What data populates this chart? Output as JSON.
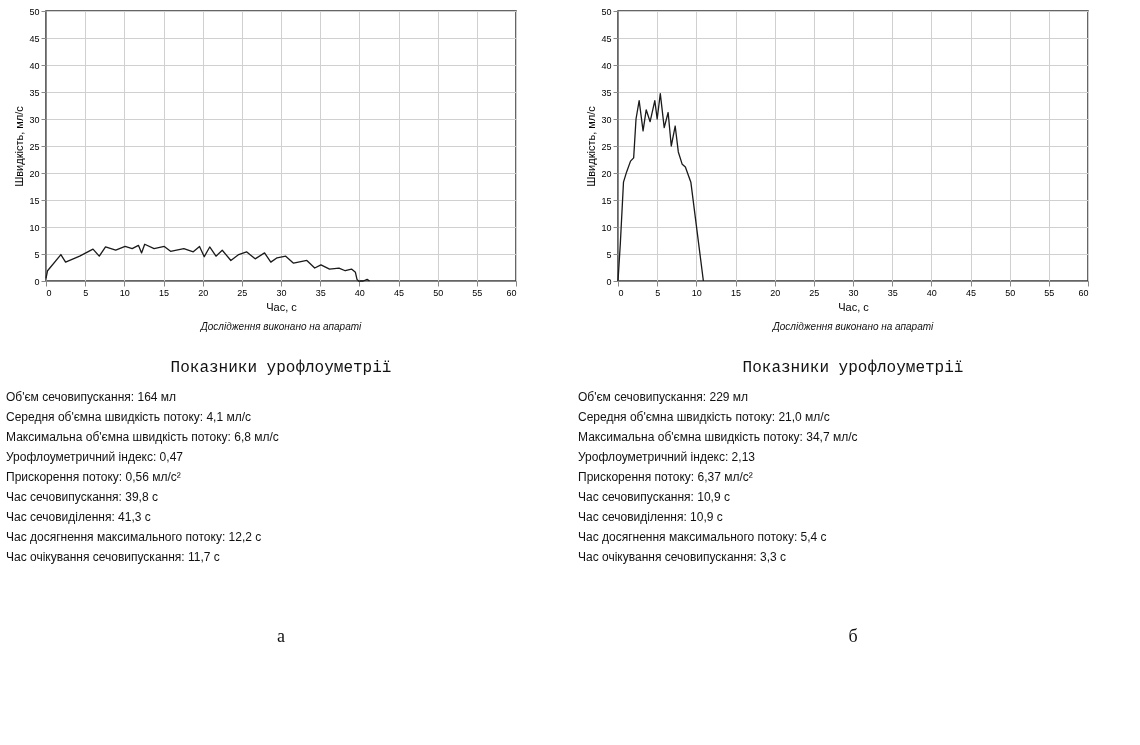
{
  "chart_data": [
    {
      "type": "line",
      "xlabel": "Час, с",
      "ylabel": "Швидкість, мл/с",
      "color": "#1a1a1a",
      "grid": true,
      "xlim": [
        0,
        60
      ],
      "xticks": [
        0,
        5,
        10,
        15,
        20,
        25,
        30,
        35,
        40,
        45,
        50,
        55,
        60
      ],
      "ylim": [
        0,
        50
      ],
      "yticks": [
        0,
        5,
        10,
        15,
        20,
        25,
        30,
        35,
        40,
        45,
        50
      ],
      "x": [
        0,
        0.2,
        1.9,
        2.5,
        4.3,
        6,
        6.8,
        7.6,
        8.9,
        10.1,
        11,
        11.8,
        12.2,
        12.6,
        13.8,
        15.1,
        15.9,
        17.6,
        18.8,
        19.6,
        20.2,
        20.9,
        21.7,
        22.5,
        23.6,
        24.6,
        25.6,
        26.7,
        27.9,
        28.7,
        29.5,
        30.6,
        31.6,
        33.3,
        34.3,
        35.1,
        36.2,
        37.4,
        38.2,
        39,
        39.5,
        39.7,
        39.9,
        40.5,
        41,
        41.3
      ],
      "values": [
        0.5,
        1.9,
        4.9,
        3.5,
        4.6,
        5.9,
        4.6,
        6.3,
        5.7,
        6.4,
        6,
        6.6,
        5.2,
        6.8,
        6,
        6.4,
        5.5,
        6,
        5.4,
        6.4,
        4.5,
        6.3,
        4.6,
        5.7,
        3.8,
        4.9,
        5.4,
        4.1,
        5.2,
        3.5,
        4.3,
        4.6,
        3.3,
        3.8,
        2.4,
        3,
        2.2,
        2.4,
        1.9,
        2.2,
        1.6,
        0.3,
        0,
        0,
        0.3,
        0
      ],
      "annotations": [
        "Дослідження виконано на апараті",
        "Показники урофлоуметрії",
        "Об'єм сечовипускання: 164 мл",
        "Середня об'ємна швидкість потоку: 4,1 мл/с",
        "Максимальна об'ємна швидкість потоку: 6,8 мл/с",
        "Урофлоуметричний індекс: 0,47",
        "Прискорення потоку: 0,56 мл/с²",
        "Час сечовипускання: 39,8 с",
        "Час сечовиділення: 41,3 с",
        "Час досягнення максимального потоку: 12,2 с",
        "Час очікування сечовипускання: 11,7 с",
        "а"
      ]
    },
    {
      "type": "line",
      "xlabel": "Час, с",
      "ylabel": "Швидкість, мл/с",
      "color": "#1a1a1a",
      "grid": true,
      "xlim": [
        0,
        60
      ],
      "xticks": [
        0,
        5,
        10,
        15,
        20,
        25,
        30,
        35,
        40,
        45,
        50,
        55,
        60
      ],
      "ylim": [
        0,
        50
      ],
      "yticks": [
        0,
        5,
        10,
        15,
        20,
        25,
        30,
        35,
        40,
        45,
        50
      ],
      "x": [
        0,
        0.3,
        0.7,
        1.1,
        1.6,
        2,
        2.3,
        2.7,
        3.2,
        3.6,
        4.1,
        4.7,
        5,
        5.4,
        5.9,
        6.4,
        6.8,
        7.3,
        7.7,
        8.2,
        8.6,
        9.3,
        10.9
      ],
      "values": [
        0,
        7,
        18.3,
        20.2,
        22.2,
        22.8,
        30,
        33.4,
        27.8,
        31.7,
        29.5,
        33.4,
        30,
        34.7,
        28.4,
        31.2,
        25,
        28.7,
        23.9,
        21.6,
        21.1,
        18.3,
        0
      ],
      "annotations": [
        "Дослідження виконано на апараті",
        "Показники урофлоуметрії",
        "Об'єм сечовипускання: 229 мл",
        "Середня об'ємна швидкість потоку: 21,0 мл/с",
        "Максимальна об'ємна швидкість потоку: 34,7 мл/с",
        "Урофлоуметричний індекс: 2,13",
        "Прискорення потоку: 6,37 мл/с²",
        "Час сечовипускання: 10,9 с",
        "Час сечовиділення: 10,9 с",
        "Час досягнення максимального потоку: 5,4 с",
        "Час очікування сечовипускання: 3,3 с",
        "б"
      ]
    }
  ]
}
